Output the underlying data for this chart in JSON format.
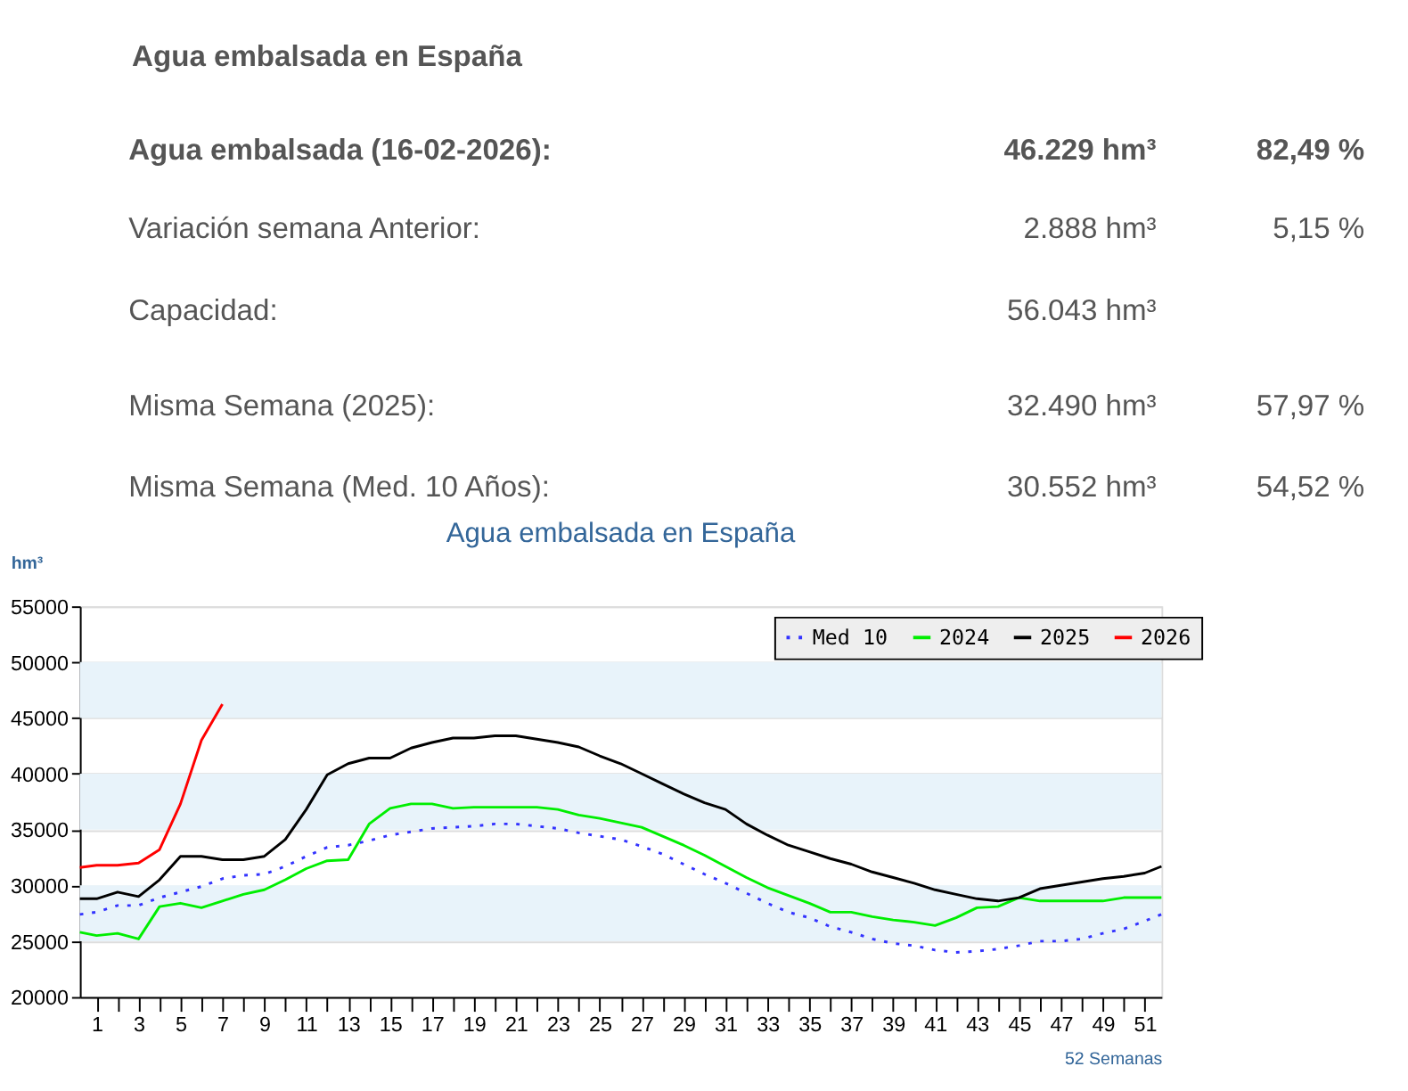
{
  "chart_data": {
    "type": "line",
    "title": "Agua embalsada en España",
    "ylabel": "hm³",
    "xlabel": "52 Semanas",
    "annotations": [
      "Agua embalsada en España",
      "Agua embalsada (16-02-2026):",
      "46.229 hm³",
      "82,49 %",
      "Variación semana Anterior:",
      "2.888 hm³",
      "5,15 %",
      "Capacidad:",
      "56.043 hm³",
      "Misma Semana (2025):",
      "32.490 hm³",
      "57,97 %",
      "Misma Semana (Med. 10 Años):",
      "30.552 hm³",
      "54,52 %"
    ],
    "xlim": [
      0.2,
      51.8
    ],
    "xticks": [
      1,
      {
        "value": 2,
        "label": null
      },
      3,
      {
        "value": 4,
        "label": null
      },
      5,
      {
        "value": 6,
        "label": null
      },
      7,
      {
        "value": 8,
        "label": null
      },
      9,
      {
        "value": 10,
        "label": null
      },
      11,
      {
        "value": 12,
        "label": null
      },
      13,
      {
        "value": 14,
        "label": null
      },
      15,
      {
        "value": 16,
        "label": null
      },
      17,
      {
        "value": 18,
        "label": null
      },
      19,
      {
        "value": 20,
        "label": null
      },
      21,
      {
        "value": 22,
        "label": null
      },
      23,
      {
        "value": 24,
        "label": null
      },
      25,
      {
        "value": 26,
        "label": null
      },
      27,
      {
        "value": 28,
        "label": null
      },
      29,
      {
        "value": 30,
        "label": null
      },
      31,
      {
        "value": 32,
        "label": null
      },
      33,
      {
        "value": 34,
        "label": null
      },
      35,
      {
        "value": 36,
        "label": null
      },
      37,
      {
        "value": 38,
        "label": null
      },
      39,
      {
        "value": 40,
        "label": null
      },
      41,
      {
        "value": 42,
        "label": null
      },
      43,
      {
        "value": 44,
        "label": null
      },
      45,
      {
        "value": 46,
        "label": null
      },
      47,
      {
        "value": 48,
        "label": null
      },
      49,
      {
        "value": 50,
        "label": null
      },
      51
    ],
    "ylim": [
      20000,
      55000
    ],
    "yticks": [
      20000,
      25000,
      30000,
      35000,
      40000,
      45000,
      50000,
      55000
    ],
    "grid": "y",
    "legend": "top right",
    "marker": "none",
    "bands": [
      {
        "axis": "y",
        "from": 25000,
        "to": 30000,
        "color": "#e8f3fa"
      },
      {
        "axis": "y",
        "from": 35000,
        "to": 40000,
        "color": "#e8f3fa"
      },
      {
        "axis": "y",
        "from": 45000,
        "to": 50000,
        "color": "#e8f3fa"
      }
    ],
    "x": [
      0.2,
      1,
      2,
      3,
      4,
      5,
      6,
      7,
      8,
      9,
      10,
      11,
      12,
      13,
      14,
      15,
      16,
      17,
      18,
      19,
      20,
      21,
      22,
      23,
      24,
      25,
      26,
      27,
      28,
      29,
      30,
      31,
      32,
      33,
      34,
      35,
      36,
      37,
      38,
      39,
      40,
      41,
      42,
      43,
      44,
      45,
      46,
      47,
      48,
      49,
      50,
      51,
      51.8
    ],
    "series": [
      {
        "name": "Med 10",
        "color": "#3333ff",
        "line_style": "dotted",
        "values": [
          27400,
          27600,
          28200,
          28200,
          28900,
          29400,
          29900,
          30600,
          30900,
          31000,
          31700,
          32600,
          33400,
          33600,
          34000,
          34500,
          34800,
          35100,
          35200,
          35300,
          35500,
          35500,
          35300,
          35100,
          34700,
          34400,
          34100,
          33500,
          32800,
          31900,
          31000,
          30200,
          29300,
          28400,
          27600,
          27100,
          26300,
          25800,
          25200,
          24800,
          24600,
          24200,
          24000,
          24100,
          24300,
          24600,
          25000,
          25000,
          25200,
          25700,
          26100,
          26800,
          27400
        ]
      },
      {
        "name": "2024",
        "color": "#00ee00",
        "line_style": "solid",
        "values": [
          25800,
          25500,
          25700,
          25200,
          28100,
          28400,
          28000,
          28600,
          29200,
          29600,
          30500,
          31500,
          32200,
          32300,
          35500,
          36900,
          37300,
          37300,
          36900,
          37000,
          37000,
          37000,
          37000,
          36800,
          36300,
          36000,
          35600,
          35200,
          34400,
          33600,
          32700,
          31700,
          30700,
          29800,
          29100,
          28400,
          27600,
          27600,
          27200,
          26900,
          26700,
          26400,
          27100,
          28000,
          28100,
          28900,
          28600,
          28600,
          28600,
          28600,
          28900,
          28900,
          28900
        ]
      },
      {
        "name": "2025",
        "color": "#000000",
        "line_style": "solid",
        "values": [
          28800,
          28800,
          29400,
          29000,
          30500,
          32600,
          32600,
          32300,
          32300,
          32600,
          34100,
          36800,
          39900,
          40900,
          41400,
          41400,
          42300,
          42800,
          43200,
          43200,
          43400,
          43400,
          43100,
          42800,
          42400,
          41600,
          40900,
          40000,
          39100,
          38200,
          37400,
          36800,
          35500,
          34500,
          33600,
          33000,
          32400,
          31900,
          31200,
          30700,
          30200,
          29600,
          29200,
          28800,
          28600,
          28900,
          29700,
          30000,
          30300,
          30600,
          30800,
          31100,
          31700
        ]
      },
      {
        "name": "2026",
        "color": "#ff0000",
        "line_style": "solid",
        "x": [
          0.2,
          1,
          2,
          3,
          4,
          5,
          6,
          7
        ],
        "values": [
          31600,
          31800,
          31800,
          32000,
          33200,
          37300,
          43000,
          46229
        ]
      }
    ]
  }
}
